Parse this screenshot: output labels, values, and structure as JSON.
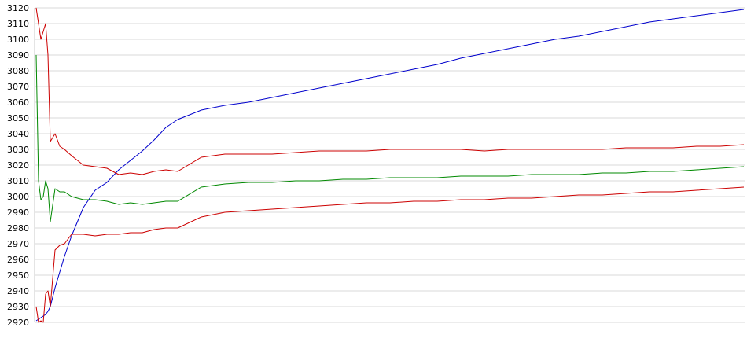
{
  "chart_data": {
    "type": "line",
    "title": "",
    "xlabel": "",
    "ylabel": "",
    "grid": true,
    "ylim": [
      2920,
      3120
    ],
    "y_ticks": [
      "3120",
      "3110",
      "3100",
      "3090",
      "3080",
      "3070",
      "3060",
      "3050",
      "3040",
      "3030",
      "3020",
      "3010",
      "3000",
      "2990",
      "2980",
      "2970",
      "2960",
      "2950",
      "2940",
      "2930",
      "2920"
    ],
    "x": [
      0,
      1,
      2,
      3,
      4,
      5,
      6,
      8,
      10,
      12,
      15,
      20,
      25,
      30,
      35,
      40,
      45,
      50,
      55,
      60,
      70,
      80,
      90,
      100,
      110,
      120,
      130,
      140,
      150,
      160,
      170,
      180,
      190,
      200,
      210,
      220,
      230,
      240,
      250,
      260,
      270,
      280,
      290,
      300
    ],
    "series": [
      {
        "color": "#0000cc",
        "values": [
          2921,
          2922,
          2923,
          2924,
          2925,
          2927,
          2930,
          2942,
          2952,
          2962,
          2975,
          2993,
          3004,
          3009,
          3017,
          3023,
          3029,
          3036,
          3044,
          3049,
          3055,
          3058,
          3060,
          3063,
          3066,
          3069,
          3072,
          3075,
          3078,
          3081,
          3084,
          3088,
          3091,
          3094,
          3097,
          3100,
          3102,
          3105,
          3108,
          3111,
          3113,
          3115,
          3117,
          3119
        ]
      },
      {
        "color": "#cc0000",
        "values": [
          3120,
          3110,
          3100,
          3105,
          3110,
          3090,
          3035,
          3040,
          3032,
          3030,
          3026,
          3020,
          3019,
          3018,
          3014,
          3015,
          3014,
          3016,
          3017,
          3016,
          3025,
          3027,
          3027,
          3027,
          3028,
          3029,
          3029,
          3029,
          3030,
          3030,
          3030,
          3030,
          3029,
          3030,
          3030,
          3030,
          3030,
          3030,
          3031,
          3031,
          3031,
          3032,
          3032,
          3033
        ]
      },
      {
        "color": "#008800",
        "values": [
          3090,
          3010,
          2998,
          3000,
          3010,
          3005,
          2984,
          3005,
          3003,
          3003,
          3000,
          2998,
          2998,
          2997,
          2995,
          2996,
          2995,
          2996,
          2997,
          2997,
          3006,
          3008,
          3009,
          3009,
          3010,
          3010,
          3011,
          3011,
          3012,
          3012,
          3012,
          3013,
          3013,
          3013,
          3014,
          3014,
          3014,
          3015,
          3015,
          3016,
          3016,
          3017,
          3018,
          3019
        ]
      },
      {
        "color": "#cc0000",
        "values": [
          2930,
          2920,
          2921,
          2920,
          2938,
          2940,
          2930,
          2966,
          2969,
          2970,
          2976,
          2976,
          2975,
          2976,
          2976,
          2977,
          2977,
          2979,
          2980,
          2980,
          2987,
          2990,
          2991,
          2992,
          2993,
          2994,
          2995,
          2996,
          2996,
          2997,
          2997,
          2998,
          2998,
          2999,
          2999,
          3000,
          3001,
          3001,
          3002,
          3003,
          3003,
          3004,
          3005,
          3006
        ]
      }
    ]
  }
}
